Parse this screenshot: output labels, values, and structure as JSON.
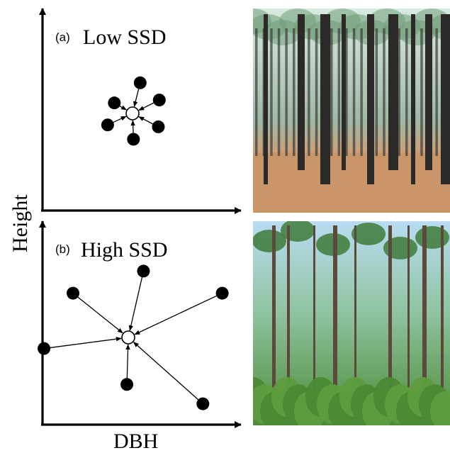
{
  "axes": {
    "y_label": "Height",
    "x_label": "DBH"
  },
  "panels": [
    {
      "id": "a",
      "tag": "(a)",
      "title": "Low SSD",
      "photo_subject": "dense-uniform-pine-plantation",
      "neighbors": [
        {
          "dx": 0.4,
          "dy": 1.6
        },
        {
          "dx": 1.4,
          "dy": 0.7
        },
        {
          "dx": 1.35,
          "dy": -0.7
        },
        {
          "dx": 0.05,
          "dy": -1.35
        },
        {
          "dx": -1.3,
          "dy": -0.6
        },
        {
          "dx": -0.95,
          "dy": 0.55
        }
      ]
    },
    {
      "id": "b",
      "tag": "(b)",
      "title": "High SSD",
      "photo_subject": "open-mixed-pine-stand",
      "neighbors": [
        {
          "dx": 0.55,
          "dy": 2.4
        },
        {
          "dx": 3.4,
          "dy": 1.6
        },
        {
          "dx": -2.0,
          "dy": 1.6
        },
        {
          "dx": -3.05,
          "dy": -0.4
        },
        {
          "dx": -0.05,
          "dy": -1.7
        },
        {
          "dx": 2.7,
          "dy": -2.4
        }
      ]
    }
  ],
  "colors": {
    "ink": "#000000",
    "sand": "#c79a6e",
    "pine_sky": "#b7d6c4",
    "canopy": "#4f8a4a",
    "sky": "#a9cfe8",
    "undergrowth": "#5f9c3f"
  }
}
